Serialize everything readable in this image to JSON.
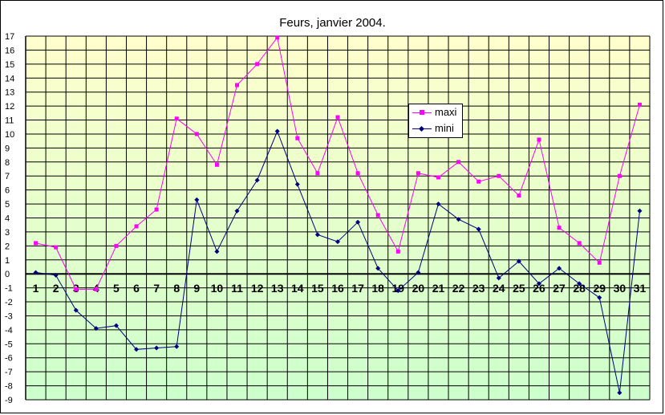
{
  "chart_data": {
    "type": "line",
    "title": "Feurs, janvier 2004.",
    "xlabel": "",
    "ylabel": "",
    "categories": [
      "1",
      "2",
      "3",
      "4",
      "5",
      "6",
      "7",
      "8",
      "9",
      "10",
      "11",
      "12",
      "13",
      "14",
      "15",
      "16",
      "17",
      "18",
      "19",
      "20",
      "21",
      "22",
      "23",
      "24",
      "25",
      "26",
      "27",
      "28",
      "29",
      "30",
      "31"
    ],
    "ylim": [
      -9,
      17
    ],
    "yticks": [
      "17",
      "16",
      "15",
      "14",
      "13",
      "12",
      "11",
      "10",
      "9",
      "8",
      "7",
      "6",
      "5",
      "4",
      "3",
      "2",
      "1",
      "0",
      "-1",
      "-2",
      "-3",
      "-4",
      "-5",
      "-6",
      "-7",
      "-8",
      "-9"
    ],
    "grid": true,
    "legend_position": "right",
    "series": [
      {
        "name": "maxi",
        "color": "#ff00ff",
        "marker": "square",
        "values": [
          2.2,
          1.9,
          -1.1,
          -1.1,
          2.0,
          3.4,
          4.6,
          11.1,
          10.0,
          7.8,
          13.5,
          15.0,
          16.9,
          9.7,
          7.2,
          11.2,
          7.2,
          4.2,
          1.6,
          7.2,
          6.9,
          8.0,
          6.6,
          7.0,
          5.6,
          9.6,
          3.3,
          2.2,
          0.8,
          7.0,
          12.1
        ]
      },
      {
        "name": "mini",
        "color": "#000080",
        "marker": "diamond",
        "values": [
          0.1,
          -0.1,
          -2.6,
          -3.9,
          -3.7,
          -5.4,
          -5.3,
          -5.2,
          5.3,
          1.6,
          4.5,
          6.7,
          10.2,
          6.4,
          2.8,
          2.3,
          3.7,
          0.4,
          -1.2,
          0.1,
          5.0,
          3.9,
          3.2,
          -0.3,
          0.9,
          -0.7,
          0.4,
          -0.7,
          -1.7,
          -8.5,
          4.5
        ]
      }
    ],
    "background_gradient": [
      "#ffffcc",
      "#ccffcc"
    ]
  }
}
